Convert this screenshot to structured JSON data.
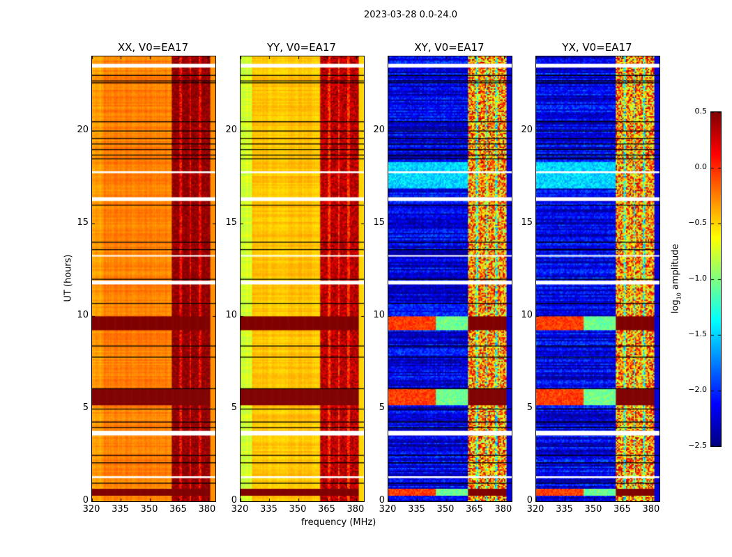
{
  "chart_data": {
    "type": "heatmap",
    "title": "2023-03-28 0.0-24.0",
    "xlabel": "frequency (MHz)",
    "ylabel": "UT (hours)",
    "xlim": [
      320,
      384
    ],
    "ylim": [
      0,
      24
    ],
    "xticks": [
      320,
      335,
      350,
      365,
      380
    ],
    "yticks": [
      0,
      5,
      10,
      15,
      20
    ],
    "colorbar": {
      "label": "log10 amplitude",
      "label_main": "log",
      "label_sub": "10",
      "label_rest": " amplitude",
      "colormap": "jet",
      "range": [
        -2.5,
        0.5
      ],
      "ticks": [
        "0.5",
        "0.0",
        "−0.5",
        "−1.0",
        "−1.5",
        "−2.0",
        "−2.5"
      ],
      "tick_values": [
        0.5,
        0.0,
        -0.5,
        -1.0,
        -1.5,
        -2.0,
        -2.5
      ]
    },
    "panels": [
      {
        "title": "XX, V0=EA17",
        "base": -0.25,
        "rfi": 0.4,
        "left_edge": -0.35
      },
      {
        "title": "YY, V0=EA17",
        "base": -0.45,
        "rfi": 0.25,
        "left_edge": -0.75
      },
      {
        "title": "XY, V0=EA17",
        "base": -2.2,
        "rfi": -0.3,
        "left_edge": -2.2
      },
      {
        "title": "YX, V0=EA17",
        "base": -2.2,
        "rfi": -0.3,
        "left_edge": -2.2
      }
    ],
    "rfi_band_mhz": [
      361.5,
      381
    ],
    "rfi_gap_mhz": [
      366,
      371,
      376
    ],
    "bright_intervals_hours": [
      [
        9.2,
        10.0
      ],
      [
        5.2,
        6.1
      ],
      [
        0.3,
        0.7
      ]
    ],
    "cross_pol_elevated_hours": [
      [
        16.9,
        18.3
      ]
    ],
    "flagged_hours": [
      [
        23.4,
        23.6
      ],
      [
        16.2,
        16.4
      ],
      [
        11.7,
        11.9
      ],
      [
        3.55,
        3.8
      ],
      [
        1.25,
        1.35
      ],
      [
        17.7,
        17.8
      ],
      [
        13.2,
        13.28
      ]
    ],
    "black_line_hours": [
      23.0,
      22.7,
      22.6,
      20.5,
      20.0,
      19.6,
      19.3,
      19.0,
      18.7,
      18.5,
      16.0,
      14.0,
      13.6,
      12.0,
      10.7,
      8.4,
      7.8,
      6.1,
      5.0,
      4.3,
      4.0,
      2.5,
      2.1,
      1.0
    ]
  }
}
